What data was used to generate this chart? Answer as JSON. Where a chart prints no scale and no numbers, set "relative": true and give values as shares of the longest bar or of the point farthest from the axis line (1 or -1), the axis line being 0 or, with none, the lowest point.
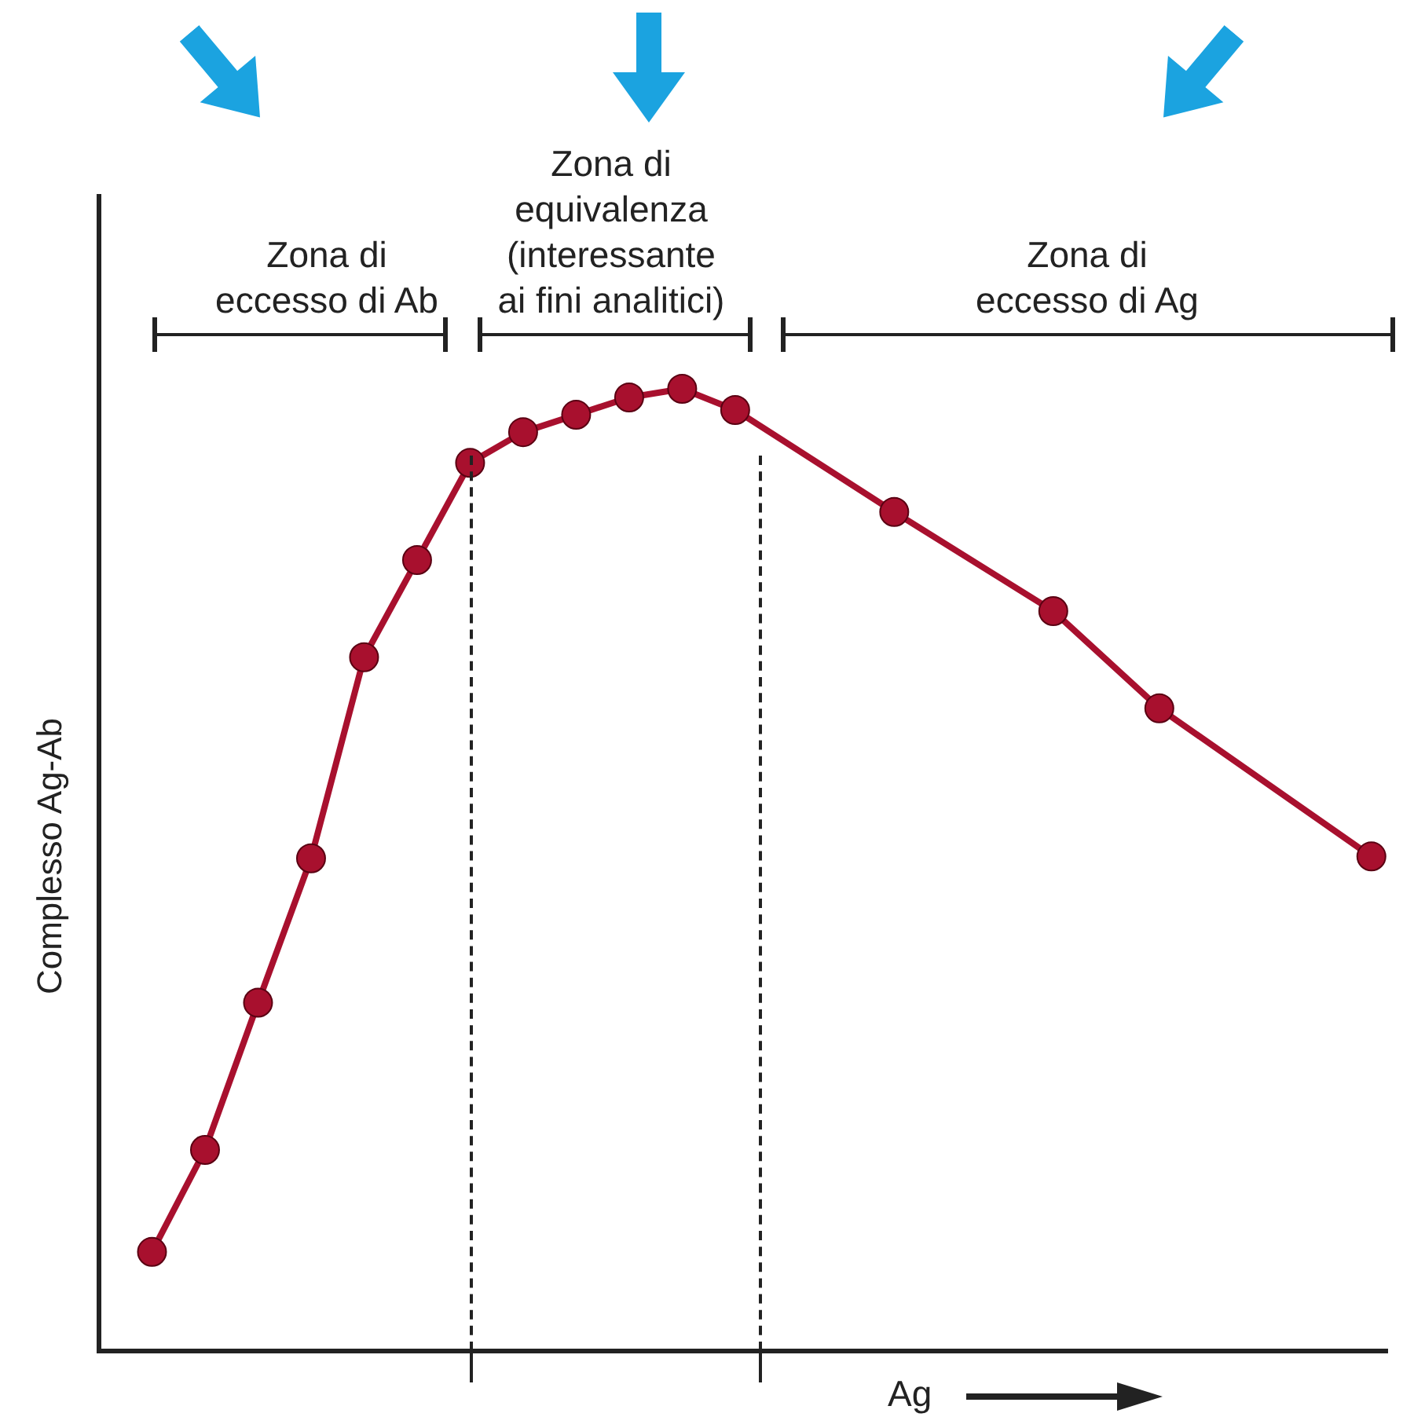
{
  "chart_data": {
    "type": "line",
    "relative": true,
    "xlabel": "Ag",
    "ylabel": "Complesso Ag-Ab",
    "legend": false,
    "marker": "circle",
    "line_style": "solid",
    "categories": [
      null,
      null,
      null,
      null,
      null,
      null,
      null,
      null,
      null,
      null,
      null,
      null,
      null,
      null,
      null,
      null,
      null,
      null,
      null,
      null,
      null,
      null,
      null,
      null
    ],
    "series": [
      {
        "color": "#a8102e",
        "values": [
          0.103,
          0.209,
          0.362,
          0.512,
          0.721,
          0.822,
          0.923,
          0.955,
          0.973,
          0.991,
          1,
          0.978,
          null,
          null,
          0.872,
          null,
          null,
          0.769,
          null,
          0.668,
          null,
          null,
          null,
          0.514
        ]
      }
    ],
    "annotations": [
      "Zona di\neccesso di Ab",
      "Zona di\nequivalenza\n(interessante\nai fini analitici)",
      "Zona di\neccesso di Ag"
    ]
  }
}
